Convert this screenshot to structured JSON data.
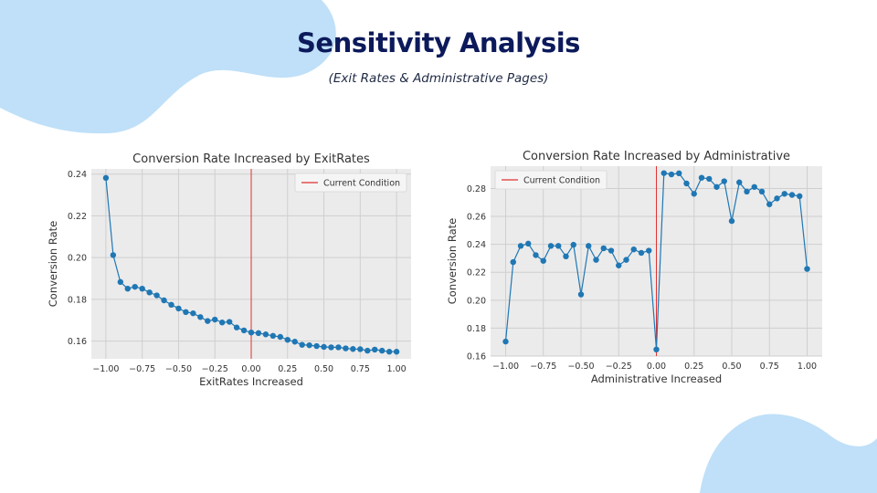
{
  "slide": {
    "title": "Sensitivity Analysis",
    "subtitle": "(Exit Rates & Administrative Pages)",
    "blob_color": "#bfe0f8"
  },
  "chart_data": [
    {
      "type": "line",
      "title": "Conversion Rate Increased by ExitRates",
      "xlabel": "ExitRates Increased",
      "ylabel": "Conversion Rate",
      "xlim": [
        -1.1,
        1.1
      ],
      "ylim": [
        0.1515,
        0.2425
      ],
      "xticks": [
        -1.0,
        -0.75,
        -0.5,
        -0.25,
        0.0,
        0.25,
        0.5,
        0.75,
        1.0
      ],
      "xtick_labels": [
        "−1.00",
        "−0.75",
        "−0.50",
        "−0.25",
        "0.00",
        "0.25",
        "0.50",
        "0.75",
        "1.00"
      ],
      "yticks": [
        0.16,
        0.18,
        0.2,
        0.22,
        0.24
      ],
      "ytick_labels": [
        "0.16",
        "0.18",
        "0.20",
        "0.22",
        "0.24"
      ],
      "grid": true,
      "legend_position": "top-right",
      "series": [
        {
          "color": "#1f77b4",
          "x": [
            -1.0,
            -0.95,
            -0.9,
            -0.85,
            -0.8,
            -0.75,
            -0.7,
            -0.65,
            -0.6,
            -0.55,
            -0.5,
            -0.45,
            -0.4,
            -0.35,
            -0.3,
            -0.25,
            -0.2,
            -0.15,
            -0.1,
            -0.05,
            0.0,
            0.05,
            0.1,
            0.15,
            0.2,
            0.25,
            0.3,
            0.35,
            0.4,
            0.45,
            0.5,
            0.55,
            0.6,
            0.65,
            0.7,
            0.75,
            0.8,
            0.85,
            0.9,
            0.95,
            1.0
          ],
          "y": [
            0.2382,
            0.2012,
            0.1883,
            0.1851,
            0.186,
            0.1851,
            0.1833,
            0.1819,
            0.1795,
            0.1774,
            0.1756,
            0.1739,
            0.1733,
            0.1715,
            0.1696,
            0.1703,
            0.1689,
            0.1692,
            0.1665,
            0.1651,
            0.1641,
            0.1638,
            0.1632,
            0.1625,
            0.162,
            0.1606,
            0.1597,
            0.1582,
            0.158,
            0.1576,
            0.1572,
            0.157,
            0.157,
            0.1565,
            0.1562,
            0.1561,
            0.1554,
            0.1559,
            0.1554,
            0.1549,
            0.1549
          ]
        }
      ],
      "reference_line": {
        "x": 0.0,
        "label": "Current Condition",
        "color": "#e03131"
      }
    },
    {
      "type": "line",
      "title": "Conversion Rate Increased by Administrative",
      "xlabel": "Administrative Increased",
      "ylabel": "Conversion Rate",
      "xlim": [
        -1.1,
        1.1
      ],
      "ylim": [
        0.16,
        0.296
      ],
      "xticks": [
        -1.0,
        -0.75,
        -0.5,
        -0.25,
        0.0,
        0.25,
        0.5,
        0.75,
        1.0
      ],
      "xtick_labels": [
        "−1.00",
        "−0.75",
        "−0.50",
        "−0.25",
        "0.00",
        "0.25",
        "0.50",
        "0.75",
        "1.00"
      ],
      "yticks": [
        0.16,
        0.18,
        0.2,
        0.22,
        0.24,
        0.26,
        0.28
      ],
      "ytick_labels": [
        "0.16",
        "0.18",
        "0.20",
        "0.22",
        "0.24",
        "0.26",
        "0.28"
      ],
      "grid": true,
      "legend_position": "top-left",
      "series": [
        {
          "color": "#1f77b4",
          "x": [
            -1.0,
            -0.95,
            -0.9,
            -0.85,
            -0.8,
            -0.75,
            -0.7,
            -0.65,
            -0.6,
            -0.55,
            -0.5,
            -0.45,
            -0.4,
            -0.35,
            -0.3,
            -0.25,
            -0.2,
            -0.15,
            -0.1,
            -0.05,
            0.0,
            0.05,
            0.1,
            0.15,
            0.2,
            0.25,
            0.3,
            0.35,
            0.4,
            0.45,
            0.5,
            0.55,
            0.6,
            0.65,
            0.7,
            0.75,
            0.8,
            0.85,
            0.9,
            0.95,
            1.0
          ],
          "y": [
            0.1704,
            0.2273,
            0.2389,
            0.2405,
            0.2323,
            0.2282,
            0.2389,
            0.2389,
            0.2314,
            0.2397,
            0.2041,
            0.2389,
            0.2289,
            0.2372,
            0.2355,
            0.2249,
            0.2289,
            0.2364,
            0.2339,
            0.2355,
            0.1647,
            0.291,
            0.2901,
            0.2909,
            0.2836,
            0.2762,
            0.2877,
            0.2869,
            0.2811,
            0.2852,
            0.2567,
            0.2844,
            0.2778,
            0.2811,
            0.2778,
            0.2687,
            0.2729,
            0.2762,
            0.2754,
            0.2745,
            0.2224
          ]
        }
      ],
      "reference_line": {
        "x": 0.0,
        "label": "Current Condition",
        "color": "#e03131"
      }
    }
  ]
}
